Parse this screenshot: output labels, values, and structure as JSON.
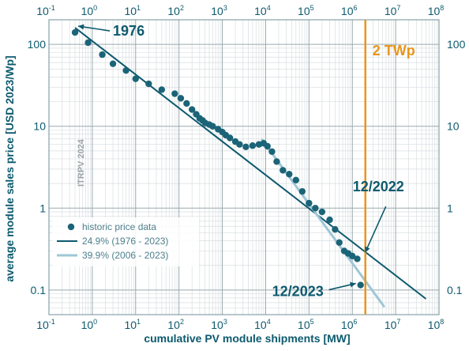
{
  "chart_data": {
    "type": "scatter",
    "x_scale": "log",
    "y_scale": "log",
    "xlabel": "cumulative PV module shipments [MW]",
    "ylabel": "average module sales price [USD 2023/Wp]",
    "xlim": [
      0.1,
      100000000
    ],
    "ylim": [
      0.05,
      200
    ],
    "x_ticks": [
      {
        "base": "10",
        "exp": "-1"
      },
      {
        "base": "10",
        "exp": "0"
      },
      {
        "base": "10",
        "exp": "1"
      },
      {
        "base": "10",
        "exp": "2"
      },
      {
        "base": "10",
        "exp": "3"
      },
      {
        "base": "10",
        "exp": "4"
      },
      {
        "base": "10",
        "exp": "5"
      },
      {
        "base": "10",
        "exp": "6"
      },
      {
        "base": "10",
        "exp": "7"
      },
      {
        "base": "10",
        "exp": "8"
      }
    ],
    "y_ticks": [
      "100",
      "10",
      "1",
      "0.1"
    ],
    "grid": true,
    "legend_position": "bottom-left",
    "watermark": "ITRPV 2024",
    "colors": {
      "data": "#1b6478",
      "fit_1976": "#0d5a6e",
      "fit_2006": "#9ec7d6",
      "marker_2tw": "#e8961e",
      "text": "#0d5a6e"
    },
    "series": [
      {
        "name": "historic price data",
        "type": "scatter",
        "points": [
          [
            0.4,
            140
          ],
          [
            0.8,
            105
          ],
          [
            1.7,
            75
          ],
          [
            3,
            58
          ],
          [
            6,
            48
          ],
          [
            10,
            38
          ],
          [
            20,
            33
          ],
          [
            40,
            28
          ],
          [
            80,
            25
          ],
          [
            110,
            22
          ],
          [
            150,
            19
          ],
          [
            200,
            16
          ],
          [
            250,
            14
          ],
          [
            300,
            12.5
          ],
          [
            350,
            11.8
          ],
          [
            400,
            11
          ],
          [
            500,
            10.5
          ],
          [
            600,
            10
          ],
          [
            800,
            9.2
          ],
          [
            1000,
            8.5
          ],
          [
            1200,
            7.8
          ],
          [
            1500,
            7.2
          ],
          [
            2000,
            6.5
          ],
          [
            2500,
            6
          ],
          [
            3500,
            5.6
          ],
          [
            5000,
            5.8
          ],
          [
            7000,
            6
          ],
          [
            9000,
            6.2
          ],
          [
            11000,
            5.7
          ],
          [
            14000,
            4.9
          ],
          [
            18000,
            3.7
          ],
          [
            25000,
            2.9
          ],
          [
            35000,
            2.6
          ],
          [
            50000,
            2.2
          ],
          [
            70000,
            1.6
          ],
          [
            100000,
            1.15
          ],
          [
            140000,
            1.0
          ],
          [
            200000,
            0.9
          ],
          [
            300000,
            0.72
          ],
          [
            400000,
            0.55
          ],
          [
            500000,
            0.38
          ],
          [
            650000,
            0.3
          ],
          [
            800000,
            0.28
          ],
          [
            1000000,
            0.26
          ],
          [
            1300000,
            0.24
          ],
          [
            1550000,
            0.115
          ]
        ]
      },
      {
        "name": "24.9% (1976 - 2023)",
        "type": "line",
        "points": [
          [
            0.4,
            160
          ],
          [
            50000000,
            0.078
          ]
        ]
      },
      {
        "name": "39.9% (2006 - 2023)",
        "type": "line",
        "points": [
          [
            8000,
            7.0
          ],
          [
            5500000,
            0.062
          ]
        ]
      }
    ],
    "vertical_marker": {
      "x": 2000000,
      "label": "2 TWp"
    },
    "annotations": [
      {
        "text": "1976",
        "x": 0.4,
        "y": 160
      },
      {
        "text": "12/2022",
        "x": 1300000,
        "y": 0.3
      },
      {
        "text": "12/2023",
        "x": 1550000,
        "y": 0.115
      }
    ]
  }
}
